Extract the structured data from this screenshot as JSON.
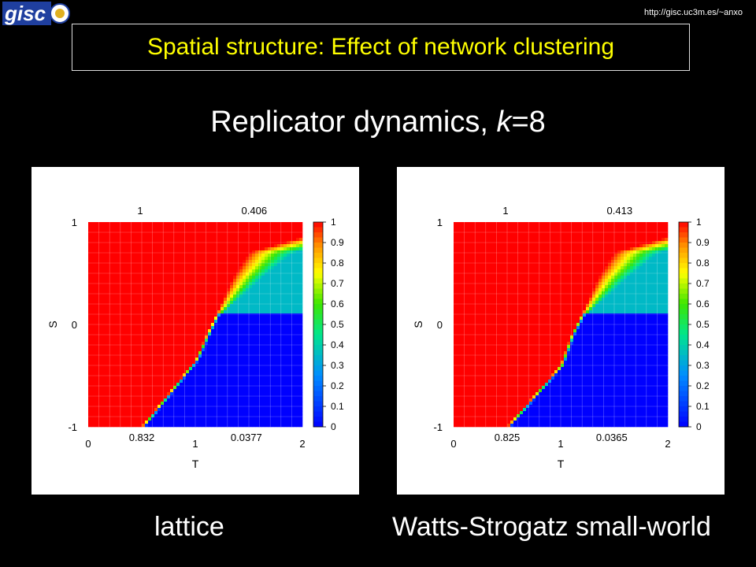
{
  "header": {
    "url": "http://gisc.uc3m.es/~anxo",
    "logo_text": "gisc"
  },
  "slide": {
    "title": "Spatial structure: Effect of network clustering",
    "subtitle_main": "Replicator dynamics, ",
    "subtitle_var": "k",
    "subtitle_rest": "=8"
  },
  "captions": {
    "left": "lattice",
    "right": "Watts-Strogatz  small-world"
  },
  "colors": {
    "cooperation": "#ff0000",
    "defection": "#0000ff",
    "background": "#000000",
    "title": "#ffff00"
  },
  "chart_data": [
    {
      "type": "heatmap",
      "xlabel": "T",
      "ylabel": "S",
      "xlim": [
        0,
        2
      ],
      "ylim": [
        -1,
        1
      ],
      "x_ticks": [
        "0",
        "1",
        "2"
      ],
      "y_ticks": [
        "-1",
        "0",
        "1"
      ],
      "top_labels": [
        "1",
        "0.406"
      ],
      "bottom_labels": [
        "0.832",
        "0.0377"
      ],
      "colorbar_ticks": [
        "0",
        "0.1",
        "0.2",
        "0.3",
        "0.4",
        "0.5",
        "0.6",
        "0.7",
        "0.8",
        "0.9",
        "1"
      ],
      "boundary": [
        [
          0.5,
          -1
        ],
        [
          1.0,
          -0.35
        ],
        [
          1.13,
          -0.05
        ],
        [
          1.2,
          0.1
        ],
        [
          1.35,
          0.45
        ],
        [
          1.5,
          0.7
        ],
        [
          2.0,
          0.85
        ]
      ]
    },
    {
      "type": "heatmap",
      "xlabel": "T",
      "ylabel": "S",
      "xlim": [
        0,
        2
      ],
      "ylim": [
        -1,
        1
      ],
      "x_ticks": [
        "0",
        "1",
        "2"
      ],
      "y_ticks": [
        "-1",
        "0",
        "1"
      ],
      "top_labels": [
        "1",
        "0.413"
      ],
      "bottom_labels": [
        "0.825",
        "0.0365"
      ],
      "colorbar_ticks": [
        "0",
        "0.1",
        "0.2",
        "0.3",
        "0.4",
        "0.5",
        "0.6",
        "0.7",
        "0.8",
        "0.9",
        "1"
      ],
      "boundary": [
        [
          0.5,
          -1
        ],
        [
          1.0,
          -0.4
        ],
        [
          1.1,
          -0.1
        ],
        [
          1.2,
          0.1
        ],
        [
          1.35,
          0.45
        ],
        [
          1.5,
          0.7
        ],
        [
          2.0,
          0.85
        ]
      ]
    }
  ]
}
